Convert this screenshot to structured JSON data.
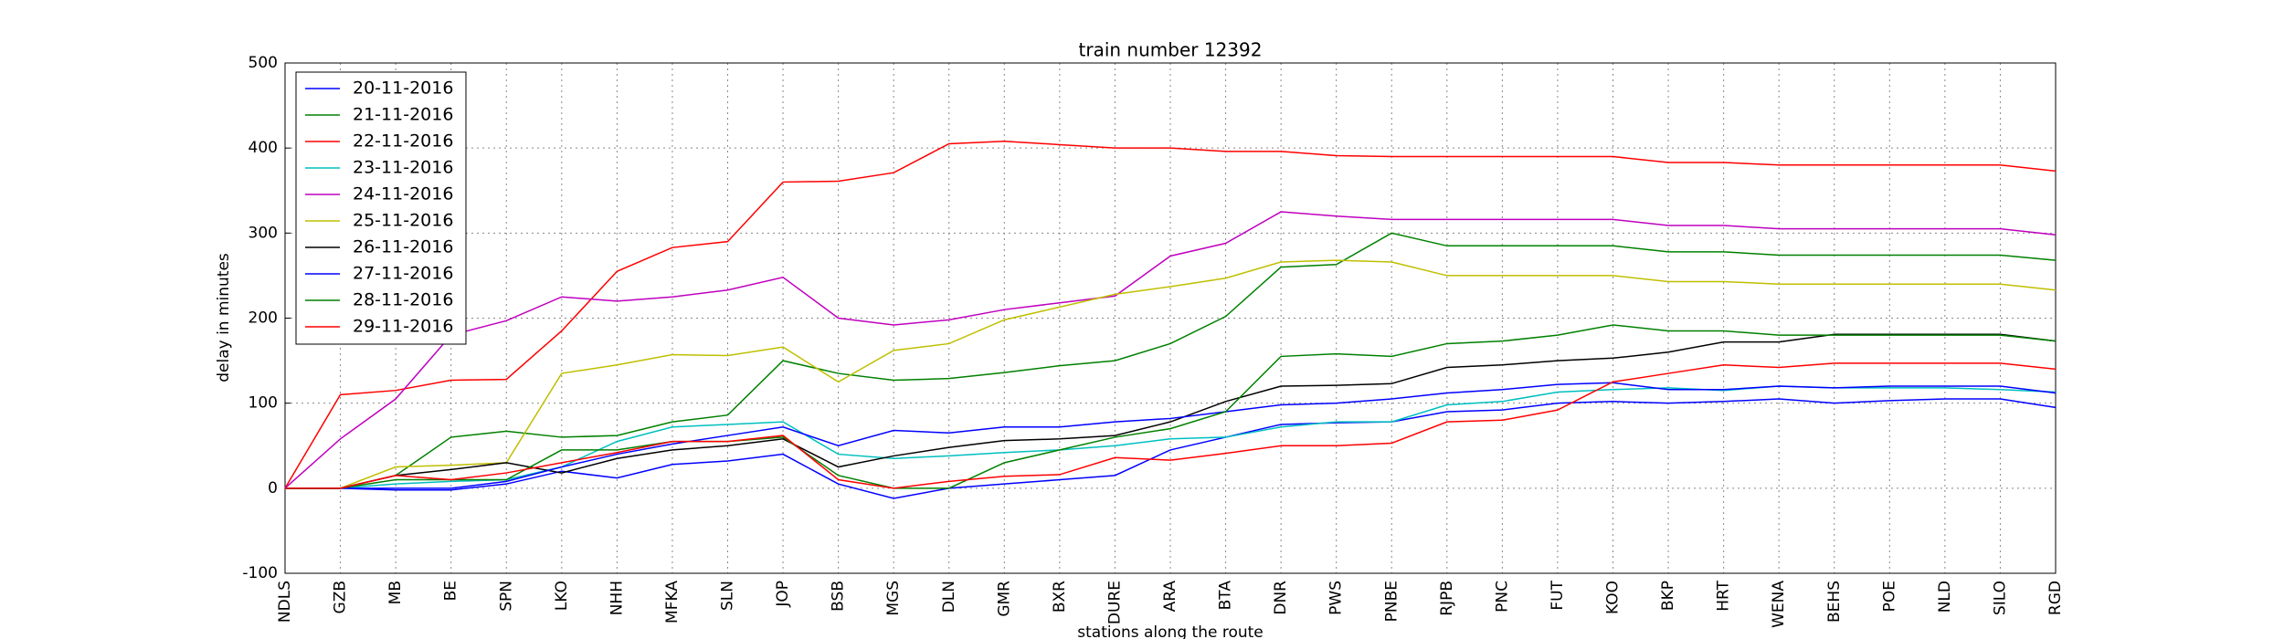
{
  "chart_data": {
    "type": "line",
    "title": "train number 12392",
    "x_label": "stations along the route",
    "y_label": "delay in minutes",
    "categories": [
      "NDLS",
      "GZB",
      "MB",
      "BE",
      "SPN",
      "LKO",
      "NHH",
      "MFKA",
      "SLN",
      "JOP",
      "BSB",
      "MGS",
      "DLN",
      "GMR",
      "BXR",
      "DURE",
      "ARA",
      "BTA",
      "DNR",
      "PWS",
      "PNBE",
      "RJPB",
      "PNC",
      "FUT",
      "KOO",
      "BKP",
      "HRT",
      "WENA",
      "BEHS",
      "POE",
      "NLD",
      "SILO",
      "RGD"
    ],
    "series": [
      {
        "name": "20-11-2016",
        "color": "#0000ff",
        "values": [
          0,
          0,
          -2,
          -2,
          5,
          20,
          12,
          28,
          32,
          40,
          5,
          -12,
          0,
          5,
          10,
          15,
          45,
          60,
          75,
          77,
          78,
          90,
          92,
          100,
          102,
          100,
          102,
          105,
          100,
          103,
          105,
          105,
          95
        ]
      },
      {
        "name": "21-11-2016",
        "color": "#008000",
        "values": [
          0,
          0,
          15,
          60,
          67,
          60,
          62,
          78,
          86,
          150,
          135,
          127,
          129,
          136,
          144,
          150,
          170,
          202,
          260,
          263,
          300,
          285,
          285,
          285,
          285,
          278,
          278,
          274,
          274,
          274,
          274,
          274,
          268
        ]
      },
      {
        "name": "22-11-2016",
        "color": "#ff0000",
        "values": [
          0,
          110,
          115,
          127,
          128,
          185,
          255,
          283,
          290,
          360,
          361,
          371,
          405,
          408,
          404,
          400,
          400,
          396,
          396,
          391,
          390,
          390,
          390,
          390,
          390,
          383,
          383,
          380,
          380,
          380,
          380,
          380,
          373
        ]
      },
      {
        "name": "23-11-2016",
        "color": "#00bfbf",
        "values": [
          0,
          0,
          5,
          8,
          10,
          25,
          55,
          72,
          75,
          78,
          40,
          35,
          38,
          42,
          45,
          50,
          58,
          60,
          72,
          78,
          78,
          98,
          102,
          113,
          116,
          118,
          115,
          120,
          118,
          118,
          118,
          116,
          113
        ]
      },
      {
        "name": "24-11-2016",
        "color": "#bf00bf",
        "values": [
          0,
          58,
          105,
          180,
          197,
          225,
          220,
          225,
          233,
          248,
          200,
          192,
          198,
          210,
          218,
          226,
          273,
          288,
          325,
          320,
          316,
          316,
          316,
          316,
          316,
          309,
          309,
          305,
          305,
          305,
          305,
          305,
          298
        ]
      },
      {
        "name": "25-11-2016",
        "color": "#bfbf00",
        "values": [
          0,
          0,
          25,
          27,
          30,
          135,
          145,
          157,
          156,
          166,
          125,
          162,
          170,
          198,
          213,
          228,
          237,
          247,
          266,
          268,
          266,
          250,
          250,
          250,
          250,
          243,
          243,
          240,
          240,
          240,
          240,
          240,
          233
        ]
      },
      {
        "name": "26-11-2016",
        "color": "#000000",
        "values": [
          0,
          0,
          15,
          22,
          30,
          18,
          35,
          45,
          50,
          58,
          25,
          38,
          48,
          56,
          58,
          62,
          78,
          102,
          120,
          121,
          123,
          142,
          145,
          150,
          153,
          160,
          172,
          172,
          181,
          181,
          181,
          181,
          173
        ]
      },
      {
        "name": "27-11-2016",
        "color": "#0000ff",
        "values": [
          0,
          0,
          0,
          0,
          8,
          25,
          40,
          52,
          62,
          72,
          50,
          68,
          65,
          72,
          72,
          78,
          82,
          90,
          98,
          100,
          105,
          112,
          116,
          122,
          124,
          116,
          116,
          120,
          118,
          120,
          120,
          120,
          112
        ]
      },
      {
        "name": "28-11-2016",
        "color": "#008000",
        "values": [
          0,
          0,
          10,
          10,
          10,
          45,
          45,
          55,
          55,
          60,
          15,
          0,
          0,
          30,
          45,
          60,
          70,
          90,
          155,
          158,
          155,
          170,
          173,
          180,
          192,
          185,
          185,
          180,
          180,
          180,
          180,
          180,
          173
        ]
      },
      {
        "name": "29-11-2016",
        "color": "#ff0000",
        "values": [
          0,
          0,
          15,
          10,
          18,
          30,
          42,
          55,
          55,
          62,
          10,
          0,
          8,
          14,
          16,
          36,
          33,
          41,
          50,
          50,
          53,
          78,
          80,
          92,
          125,
          135,
          145,
          142,
          147,
          147,
          147,
          147,
          140
        ]
      }
    ],
    "ylim": [
      -100,
      500
    ],
    "yticks": [
      -100,
      0,
      100,
      200,
      300,
      400,
      500
    ],
    "grid": true,
    "legend": "upper left"
  }
}
